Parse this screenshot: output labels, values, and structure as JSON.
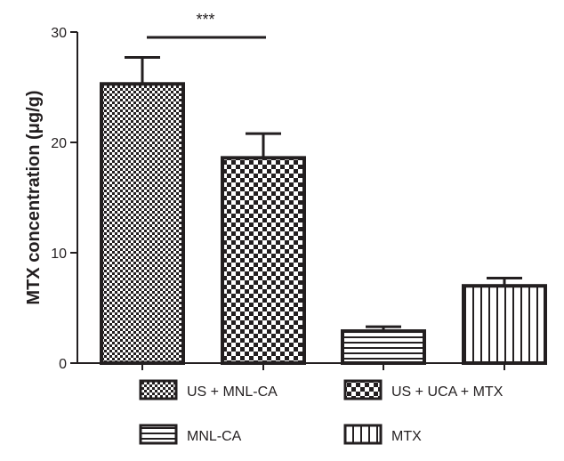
{
  "chart_data": {
    "type": "bar",
    "categories": [
      "US + MNL-CA",
      "US + UCA + MTX",
      "MNL-CA",
      "MTX"
    ],
    "values": [
      25.3,
      18.6,
      2.9,
      7.0
    ],
    "errors": [
      2.4,
      2.2,
      0.4,
      0.7
    ],
    "patterns": [
      "fine-checker",
      "coarse-checker",
      "horizontal-stripes",
      "vertical-stripes"
    ],
    "title": "",
    "xlabel": "",
    "ylabel": "MTX concentration (μg/g)",
    "ylim": [
      0,
      30
    ],
    "yticks": [
      0,
      10,
      20,
      30
    ],
    "ytick_labels": [
      "0",
      "10",
      "20",
      "30"
    ],
    "legend": {
      "position": "bottom",
      "items": [
        "US + MNL-CA",
        "US + UCA + MTX",
        "MNL-CA",
        "MTX"
      ]
    },
    "significance": {
      "label": "***",
      "between": [
        0,
        1
      ]
    },
    "colors": {
      "ink": "#231f20",
      "fill": "#ffffff"
    },
    "grid": false
  }
}
